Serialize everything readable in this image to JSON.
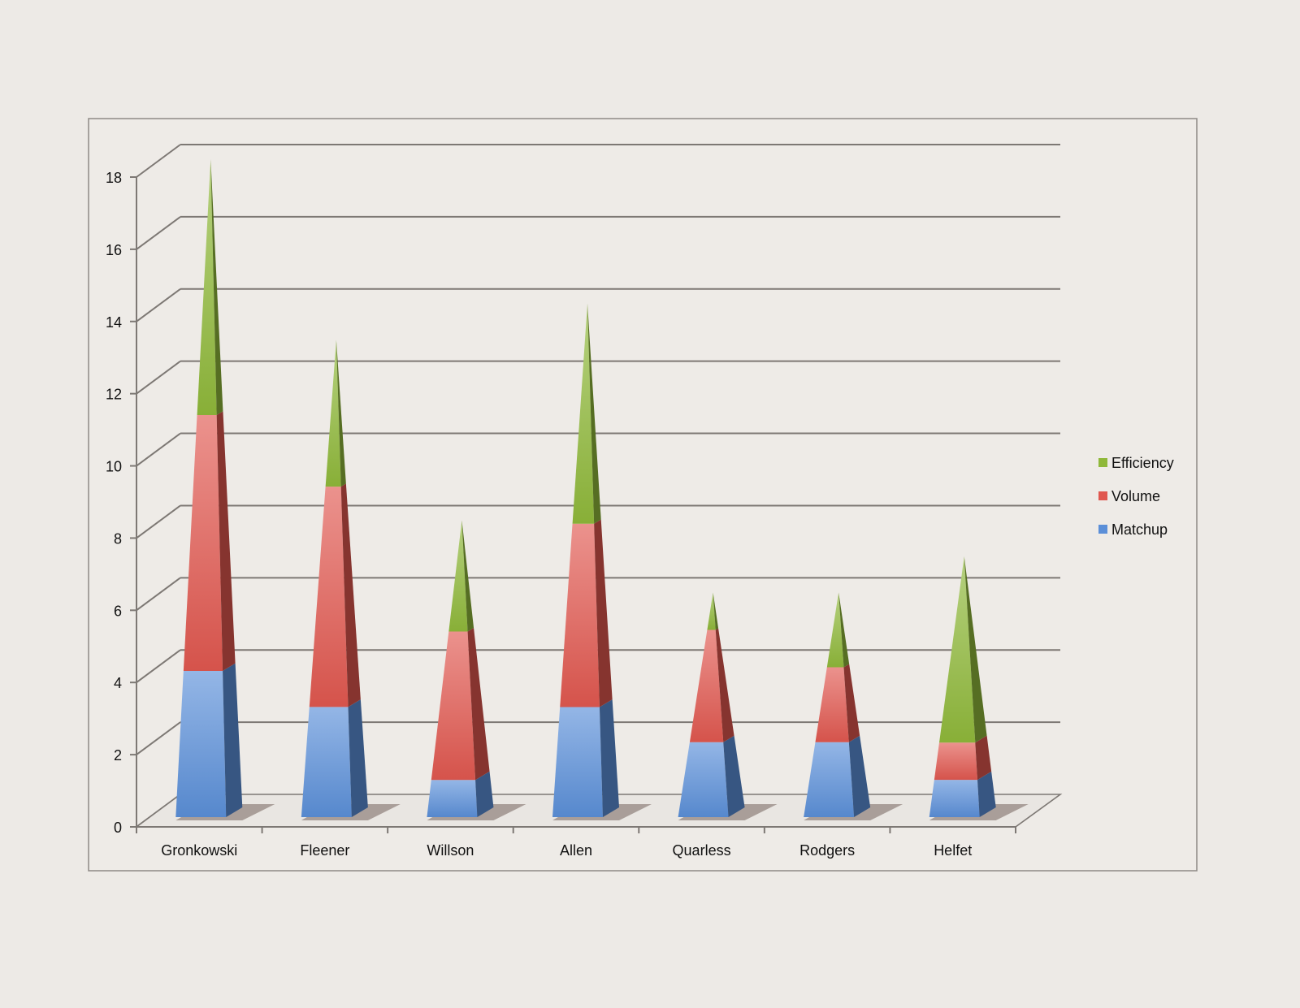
{
  "chart_data": {
    "type": "bar",
    "subtype": "stacked-3d-pyramid",
    "title": "",
    "xlabel": "",
    "ylabel": "",
    "ylim": [
      0,
      18
    ],
    "yticks": [
      0,
      2,
      4,
      6,
      8,
      10,
      12,
      14,
      16,
      18
    ],
    "grid": true,
    "legend_position": "right",
    "categories": [
      "Gronkowski",
      "Fleener",
      "Willson",
      "Allen",
      "Quarless",
      "Rodgers",
      "Helfet"
    ],
    "series": [
      {
        "name": "Matchup",
        "color": "#5b8fd8",
        "values": [
          4,
          3,
          1,
          3,
          2,
          2,
          1
        ]
      },
      {
        "name": "Volume",
        "color": "#e0574f",
        "values": [
          7,
          6,
          4,
          5,
          3,
          2,
          1
        ]
      },
      {
        "name": "Efficiency",
        "color": "#8fb83a",
        "values": [
          7,
          4,
          3,
          6,
          1,
          2,
          5
        ]
      }
    ],
    "legend_order": [
      "Efficiency",
      "Volume",
      "Matchup"
    ]
  }
}
